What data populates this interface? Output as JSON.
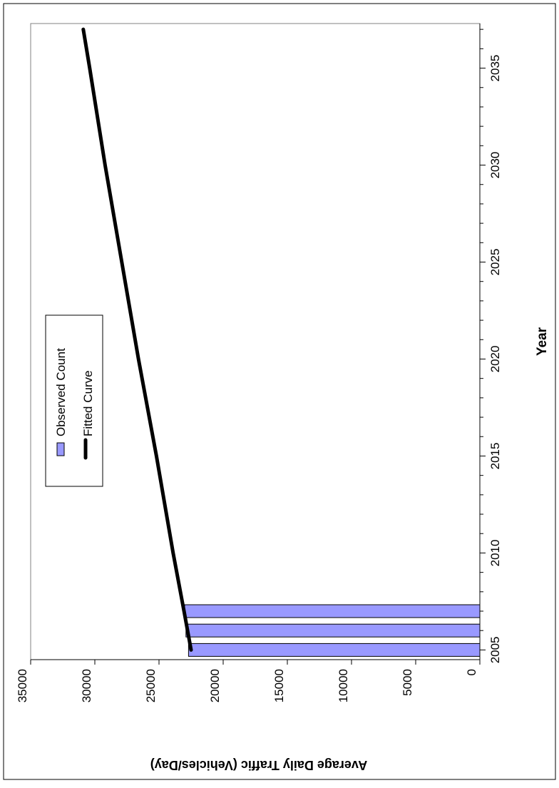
{
  "chart_data": {
    "type": "bar",
    "orientation": "rotated-90-clockwise",
    "xlabel": "Year",
    "ylabel": "Average Daily Traffic (Vehicles/Day)",
    "xlim": [
      2004.5,
      2037.3
    ],
    "ylim": [
      0,
      35000
    ],
    "x_ticks": [
      2005,
      2010,
      2015,
      2020,
      2025,
      2030,
      2035
    ],
    "x_tick_labels": [
      "2005",
      "2010",
      "2015",
      "2020",
      "2025",
      "2030",
      "2035"
    ],
    "y_ticks": [
      0,
      5000,
      10000,
      15000,
      20000,
      25000,
      30000,
      35000
    ],
    "y_tick_labels": [
      "0",
      "5000",
      "10000",
      "15000",
      "20000",
      "25000",
      "30000",
      "35000"
    ],
    "grid": false,
    "legend": {
      "position": "upper-left-of-plot",
      "entries": [
        "Observed Count",
        "Fitted Curve"
      ]
    },
    "series": [
      {
        "name": "Observed Count",
        "type": "bar",
        "color": "#9999ff",
        "x": [
          2005,
          2006,
          2007
        ],
        "values": [
          22700,
          22900,
          23000
        ]
      },
      {
        "name": "Fitted Curve",
        "type": "line",
        "color": "#000000",
        "x": [
          2005,
          2007,
          2010,
          2015,
          2020,
          2025,
          2030,
          2035,
          2037
        ],
        "values": [
          22500,
          23050,
          23900,
          25200,
          26600,
          27900,
          29200,
          30400,
          30900
        ]
      }
    ]
  }
}
